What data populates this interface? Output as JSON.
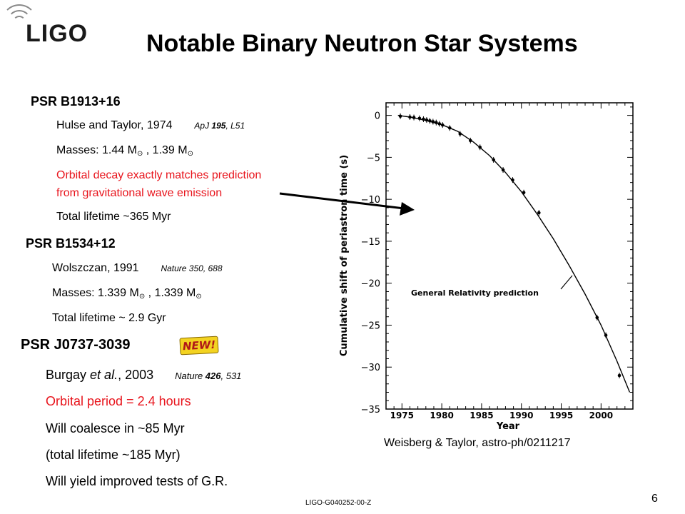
{
  "logo": {
    "text": "LIGO"
  },
  "title": "Notable Binary Neutron Star Systems",
  "systems": [
    {
      "name": "PSR B1913+16",
      "authors": "Hulse and Taylor, 1974",
      "citation": {
        "journal": "ApJ",
        "volume": "195",
        "page": ", L51"
      },
      "masses": {
        "prefix": "Masses: ",
        "m1": "1.44 M",
        "sep": " , ",
        "m2": "1.39 M",
        "sun_symbol": "⊙"
      },
      "decay_line1": "Orbital decay exactly matches prediction",
      "decay_line2": "from gravitational wave emission",
      "lifetime": "Total lifetime ~365 Myr"
    },
    {
      "name": "PSR B1534+12",
      "authors": "Wolszczan, 1991",
      "citation": {
        "text": "Nature 350, 688"
      },
      "masses": {
        "prefix": "Masses: ",
        "m1": "1.339 M",
        "sep": " , ",
        "m2": "1.339 M",
        "sun_symbol": "⊙"
      },
      "lifetime": "Total lifetime ~ 2.9 Gyr"
    },
    {
      "name": "PSR J0737-3039",
      "badge": "NEW!",
      "authors_pre": "Burgay ",
      "authors_italic": "et al.",
      "authors_post": ", 2003",
      "citation": {
        "journal": "Nature ",
        "volume": "426",
        "page": ", 531"
      },
      "period": "Orbital period = 2.4 hours",
      "coalesce": "Will coalesce in ~85 Myr",
      "lifetime": "(total lifetime ~185 Myr)",
      "tests": "Will yield improved tests of G.R."
    }
  ],
  "figure_credit": "Weisberg & Taylor, astro-ph/0211217",
  "footer_id": "LIGO-G040252-00-Z",
  "page_number": "6",
  "colors": {
    "red_text": "#e8141c",
    "logo_gray": "#8a8a8a"
  },
  "chart_data": {
    "type": "scatter",
    "xlabel": "Year",
    "ylabel": "Cumulative shift of periastron time (s)",
    "xlim": [
      1973,
      2004
    ],
    "ylim": [
      -35,
      1.5
    ],
    "x_ticks": [
      1975,
      1980,
      1985,
      1990,
      1995,
      2000
    ],
    "y_ticks": [
      0,
      -5,
      -10,
      -15,
      -20,
      -25,
      -30,
      -35
    ],
    "x_tick_labels": [
      "1975",
      "1980",
      "1985",
      "1990",
      "1995",
      "2000"
    ],
    "y_tick_labels": [
      "0",
      "−5",
      "−10",
      "−15",
      "−20",
      "−25",
      "−30",
      "−35"
    ],
    "annotation": "General Relativity prediction",
    "grid": false,
    "series": [
      {
        "kind": "points",
        "x": [
          1974.8,
          1976.0,
          1976.5,
          1977.2,
          1977.7,
          1978.1,
          1978.5,
          1978.9,
          1979.3,
          1979.7,
          1980.1,
          1981.0,
          1982.3,
          1983.6,
          1984.8,
          1986.5,
          1987.7,
          1988.9,
          1990.3,
          1992.2,
          1999.5,
          2000.6,
          2002.3
        ],
        "y": [
          -0.1,
          -0.2,
          -0.25,
          -0.35,
          -0.45,
          -0.55,
          -0.65,
          -0.75,
          -0.85,
          -1.0,
          -1.15,
          -1.5,
          -2.2,
          -3.0,
          -3.8,
          -5.3,
          -6.5,
          -7.7,
          -9.2,
          -11.6,
          -24.1,
          -26.2,
          -31.0
        ]
      },
      {
        "kind": "curve",
        "x": [
          1974.5,
          1976,
          1978,
          1980,
          1982,
          1984,
          1986,
          1988,
          1990,
          1992,
          1994,
          1996,
          1998,
          2000,
          2002,
          2003.6
        ],
        "y": [
          0,
          -0.2,
          -0.6,
          -1.1,
          -1.9,
          -3.2,
          -4.8,
          -6.8,
          -9.1,
          -11.8,
          -14.7,
          -17.9,
          -21.3,
          -25.0,
          -29.3,
          -33.0
        ]
      }
    ]
  }
}
